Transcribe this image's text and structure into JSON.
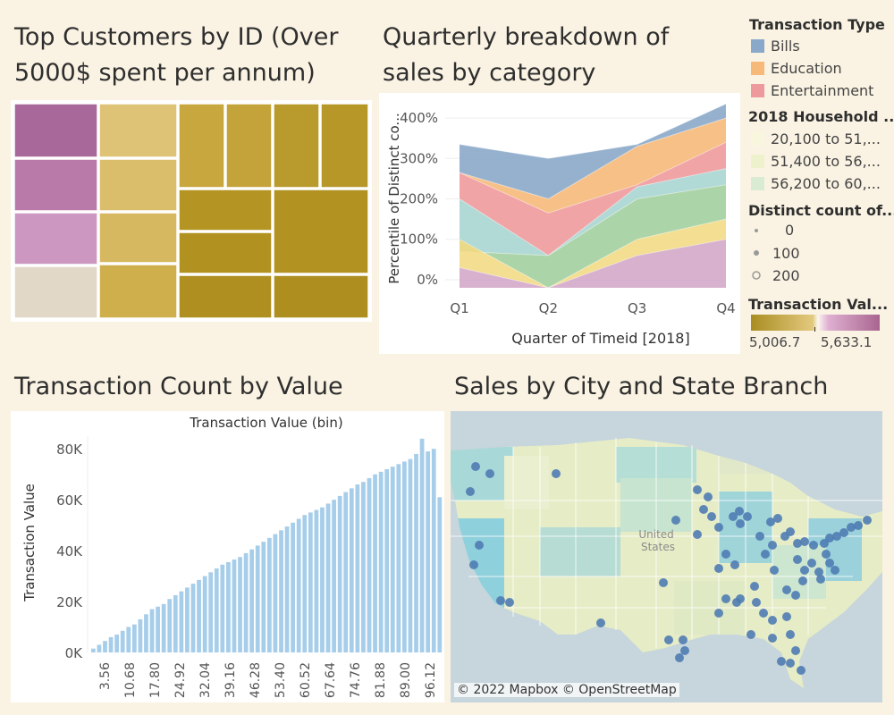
{
  "colors": {
    "background": "#faf3e3",
    "bills": "#8aa8c9",
    "education": "#f6b97a",
    "entertainment": "#ee9a9c",
    "gold_dark": "#b0901f",
    "gold_light": "#e0c97a",
    "pink": "#c882b5",
    "bar": "#a6cde9",
    "map_dot": "#4f7cb3"
  },
  "titles": {
    "treemap": "Top Customers by ID (Over 5000$ spent per annum)",
    "area": "Quarterly breakdown of sales by category",
    "bars": "Transaction Count by Value",
    "map": "Sales by City and State Branch"
  },
  "legend": {
    "type_title": "Transaction Type",
    "types": [
      "Bills",
      "Education",
      "Entertainment"
    ],
    "household_title": "2018 Household ...",
    "household": [
      "20,100 to 51,...",
      "51,400 to 56,...",
      "56,200 to 60,..."
    ],
    "count_title": "Distinct count of...",
    "counts": [
      "0",
      "100",
      "200"
    ],
    "value_title": "Transaction Val...",
    "value_min": "5,006.7",
    "value_max": "5,633.1"
  },
  "map": {
    "label": "United\nStates",
    "credit": "© 2022 Mapbox © OpenStreetMap"
  },
  "chart_data": [
    {
      "type": "treemap",
      "title": "Top Customers by ID (Over 5000$ spent per annum)",
      "color_legend": "Transaction Value",
      "color_range": [
        5006.7,
        5633.1
      ],
      "cells": 22
    },
    {
      "type": "area",
      "title": "Quarterly breakdown of sales by category",
      "xlabel": "Quarter of Timeid [2018]",
      "ylabel": "Percentile of Distinct co...",
      "categories": [
        "Q1",
        "Q2",
        "Q3",
        "Q4"
      ],
      "yticks": [
        "0%",
        "100%",
        "200%",
        "300%",
        "400%"
      ],
      "ylim": [
        -20,
        440
      ],
      "layers": [
        {
          "color": "#d3a9c9",
          "values": [
            30,
            -20,
            60,
            100
          ]
        },
        {
          "color": "#f2da85",
          "values": [
            100,
            -20,
            100,
            150
          ]
        },
        {
          "color": "#a3cfa0",
          "values": [
            70,
            60,
            200,
            235
          ]
        },
        {
          "color": "#a8d5d2",
          "values": [
            200,
            60,
            230,
            275
          ]
        },
        {
          "color": "#ee9a9c",
          "values": [
            265,
            165,
            235,
            340
          ]
        },
        {
          "color": "#f6b97a",
          "values": [
            265,
            200,
            330,
            400
          ]
        },
        {
          "color": "#8aa8c9",
          "values": [
            335,
            300,
            335,
            435
          ]
        }
      ]
    },
    {
      "type": "bar",
      "title": "Transaction Count by Value",
      "header": "Transaction Value (bin)",
      "ylabel": "Transaction Value",
      "yticks": [
        "0K",
        "20K",
        "40K",
        "60K",
        "80K"
      ],
      "ylim": [
        0,
        85000
      ],
      "xticks": [
        "3.56",
        "10.68",
        "17.80",
        "24.92",
        "32.04",
        "39.16",
        "46.28",
        "53.40",
        "60.52",
        "67.64",
        "74.76",
        "81.88",
        "89.00",
        "96.12"
      ],
      "values": [
        1500,
        3000,
        4500,
        6000,
        7000,
        8500,
        10000,
        11000,
        13000,
        15000,
        17000,
        18000,
        19000,
        21000,
        22500,
        24000,
        25500,
        27000,
        28500,
        30000,
        31500,
        33000,
        34500,
        35500,
        36500,
        37500,
        39000,
        40500,
        42000,
        43500,
        45000,
        46500,
        48000,
        49500,
        51000,
        52500,
        54000,
        55000,
        56000,
        57000,
        58500,
        60000,
        61500,
        63000,
        64500,
        66000,
        67000,
        68500,
        70000,
        71000,
        72000,
        73000,
        74000,
        75000,
        76000,
        78000,
        84000,
        79000,
        80000,
        61000
      ]
    },
    {
      "type": "scatter",
      "title": "Sales by City and State Branch",
      "description": "map of United States with branch locations"
    }
  ]
}
